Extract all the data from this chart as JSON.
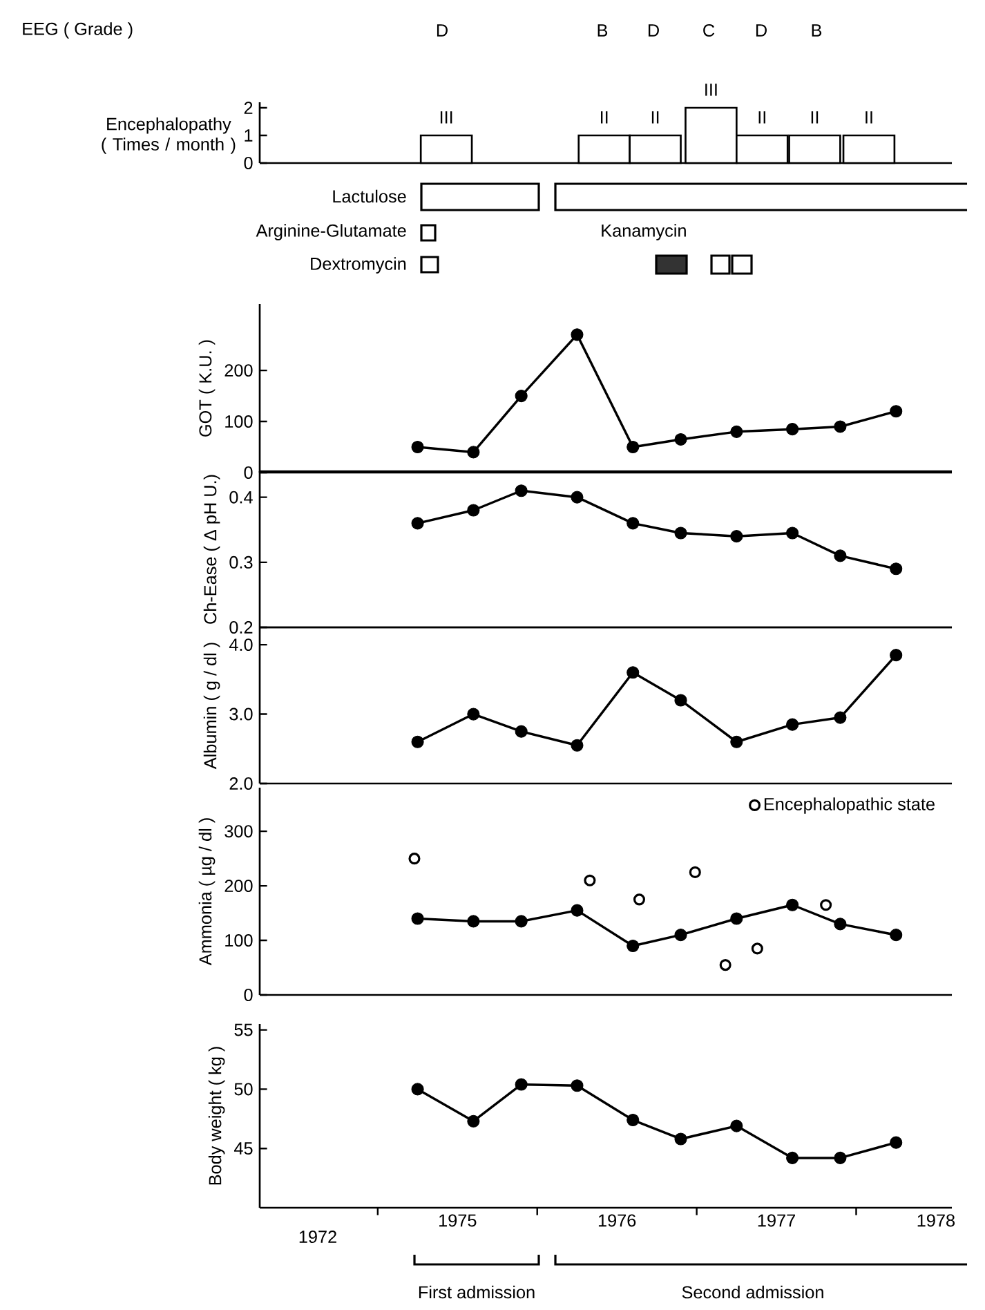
{
  "chart_data": [
    {
      "type": "bar",
      "ylabel": "Encephalopathy ( Times / month )",
      "x": [
        1974.93,
        1975.92,
        1976.24,
        1976.59,
        1976.91,
        1977.24,
        1977.58
      ],
      "values": [
        1,
        1,
        1,
        2,
        1,
        1,
        1
      ],
      "color": "#ffffff",
      "xlim": [
        1973.76,
        1978.1
      ],
      "ylim": [
        0,
        2.2
      ],
      "yticks": [
        0,
        1,
        2
      ],
      "tick_labels": "y",
      "annotations": [
        "EEG ( Grade )",
        "D",
        "B",
        "D",
        "C",
        "D",
        "B",
        {
          "text": "III",
          "x": 1974.93,
          "y": 1
        },
        {
          "text": "II",
          "x": 1975.92,
          "y": 1
        },
        {
          "text": "II",
          "x": 1976.24,
          "y": 1
        },
        {
          "text": "III",
          "x": 1976.59,
          "y": 2
        },
        {
          "text": "II",
          "x": 1976.91,
          "y": 1
        },
        {
          "text": "II",
          "x": 1977.24,
          "y": 1
        },
        {
          "text": "II",
          "x": 1977.58,
          "y": 1
        }
      ]
    },
    {
      "type": "other",
      "annotations": [
        "Lactulose",
        "Arginine-Glutamate",
        "Dextromycin",
        "Kanamycin"
      ]
    },
    {
      "type": "line",
      "ylabel": "GOT ( K.U. )",
      "x": [
        1974.75,
        1975.1,
        1975.4,
        1975.75,
        1976.1,
        1976.4,
        1976.75,
        1977.1,
        1977.4,
        1977.75
      ],
      "xlim": [
        1973.76,
        1978.1
      ],
      "ylim": [
        0,
        330
      ],
      "yticks": [
        0,
        100,
        200
      ],
      "tick_labels": "y",
      "marker": "circle",
      "line_style": "solid",
      "series": [
        {
          "color": "#000000",
          "values": [
            50,
            40,
            150,
            270,
            50,
            65,
            80,
            85,
            90,
            120
          ]
        }
      ]
    },
    {
      "type": "line",
      "ylabel": "Ch-Ease ( Δ pH U.)",
      "x": [
        1974.75,
        1975.1,
        1975.4,
        1975.75,
        1976.1,
        1976.4,
        1976.75,
        1977.1,
        1977.4,
        1977.75
      ],
      "xlim": [
        1973.76,
        1978.1
      ],
      "ylim": [
        0.2,
        0.44
      ],
      "yticks": [
        0.2,
        0.3,
        0.4
      ],
      "tick_labels": "y",
      "marker": "circle",
      "line_style": "solid",
      "series": [
        {
          "color": "#000000",
          "values": [
            0.36,
            0.38,
            0.41,
            0.4,
            0.36,
            0.345,
            0.34,
            0.345,
            0.31,
            0.29
          ]
        }
      ]
    },
    {
      "type": "line",
      "ylabel": "Albumin ( g / dl )",
      "x": [
        1974.75,
        1975.1,
        1975.4,
        1975.75,
        1976.1,
        1976.4,
        1976.75,
        1977.1,
        1977.4,
        1977.75
      ],
      "xlim": [
        1973.76,
        1978.1
      ],
      "ylim": [
        2.0,
        4.25
      ],
      "yticks": [
        {
          "value": 2,
          "label": "2.0"
        },
        {
          "value": 3,
          "label": "3.0"
        },
        {
          "value": 4,
          "label": "4.0"
        }
      ],
      "tick_labels": "y",
      "marker": "circle",
      "line_style": "solid",
      "series": [
        {
          "color": "#000000",
          "values": [
            2.6,
            3.0,
            2.75,
            2.55,
            3.6,
            3.2,
            2.6,
            2.85,
            2.95,
            3.85
          ]
        }
      ]
    },
    {
      "type": "line",
      "ylabel": "Ammonia ( µg / dl )",
      "x": [
        1974.75,
        1975.1,
        1975.4,
        1975.75,
        1976.1,
        1976.4,
        1976.75,
        1977.1,
        1977.4,
        1977.75
      ],
      "xlim": [
        1973.76,
        1978.1
      ],
      "ylim": [
        0,
        380
      ],
      "yticks": [
        0,
        100,
        200,
        300
      ],
      "tick_labels": "y",
      "marker": "circle",
      "line_style": "solid",
      "legend": "top right",
      "series": [
        {
          "color": "#000000",
          "values": [
            140,
            135,
            135,
            155,
            90,
            110,
            140,
            165,
            130,
            110
          ]
        },
        {
          "type": "scatter",
          "name": "Encephalopathic state",
          "color": "#000000",
          "x": [
            1974.73,
            1975.83,
            1976.14,
            1976.49,
            1976.68,
            1976.88,
            1977.31
          ],
          "values": [
            250,
            210,
            175,
            225,
            55,
            85,
            165
          ]
        }
      ]
    },
    {
      "type": "line",
      "ylabel": "Body weight ( kg )",
      "x": [
        1974.75,
        1975.1,
        1975.4,
        1975.75,
        1976.1,
        1976.4,
        1976.75,
        1977.1,
        1977.4,
        1977.75
      ],
      "xlim": [
        1973.76,
        1978.1
      ],
      "ylim": [
        40,
        55.5
      ],
      "yticks": [
        45,
        50,
        55
      ],
      "marker": "circle",
      "line_style": "solid",
      "xticks": [
        {
          "value": 1974.5,
          "label": null
        },
        1975,
        {
          "value": 1975.5,
          "label": null
        },
        1976,
        {
          "value": 1976.5,
          "label": null
        },
        1977,
        {
          "value": 1977.5,
          "label": null
        },
        1978
      ],
      "series": [
        {
          "color": "#000000",
          "values": [
            50.0,
            47.3,
            50.4,
            50.3,
            47.4,
            45.8,
            46.9,
            44.2,
            44.2,
            45.5
          ]
        }
      ],
      "annotations": [
        "1972",
        "First admission",
        "Second admission"
      ]
    }
  ]
}
